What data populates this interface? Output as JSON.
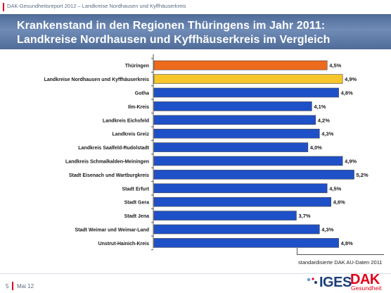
{
  "header": {
    "text": "DAK-Gesundheitsreport 2012 – Landkreise Nordhausen und Kyffhäuserkreis"
  },
  "title": {
    "line1": "Krankenstand in den Regionen Thüringens im Jahr 2011:",
    "line2": "Landkreise Nordhausen und Kyffhäuserkreis im Vergleich"
  },
  "chart_data": {
    "type": "bar",
    "orientation": "horizontal",
    "categories": [
      "Thüringen",
      "Landkreise Nordhausen und Kyffhäuserkreis",
      "Gotha",
      "Ilm-Kreis",
      "Landkreis Eichsfeld",
      "Landkreis Greiz",
      "Landkreis Saalfeld-Rudolstadt",
      "Landkreis Schmalkalden-Meiningen",
      "Stadt Eisenach und Wartburgkreis",
      "Stadt Erfurt",
      "Stadt Gera",
      "Stadt Jena",
      "Stadt Weimar und Weimar-Land",
      "Unstrut-Hainich-Kreis"
    ],
    "values": [
      4.5,
      4.9,
      4.8,
      4.1,
      4.2,
      4.3,
      4.0,
      4.9,
      5.2,
      4.5,
      4.6,
      3.7,
      4.3,
      4.8
    ],
    "value_labels": [
      "4,5%",
      "4,9%",
      "4,8%",
      "4,1%",
      "4,2%",
      "4,3%",
      "4,0%",
      "4,9%",
      "5,2%",
      "4,5%",
      "4,6%",
      "3,7%",
      "4,3%",
      "4,8%"
    ],
    "bar_colors": [
      "#ee6a1c",
      "#f7c62a",
      "#1e50c8",
      "#1e50c8",
      "#1e50c8",
      "#1e50c8",
      "#1e50c8",
      "#1e50c8",
      "#1e50c8",
      "#1e50c8",
      "#1e50c8",
      "#1e50c8",
      "#1e50c8",
      "#1e50c8"
    ],
    "xlim": [
      0,
      5.3
    ],
    "grid": false,
    "legend": "none"
  },
  "source_note": "standardisierte DAK AU-Daten 2011",
  "footer": {
    "page": "5",
    "date": "Mai 12"
  },
  "logos": {
    "iges": "IGES",
    "dak": "DAK",
    "dak_sub": "Gesundheit"
  },
  "colors": {
    "accent_red": "#e2001a",
    "title_band": "#5a76a4",
    "brand_blue": "#1c3e7a"
  }
}
